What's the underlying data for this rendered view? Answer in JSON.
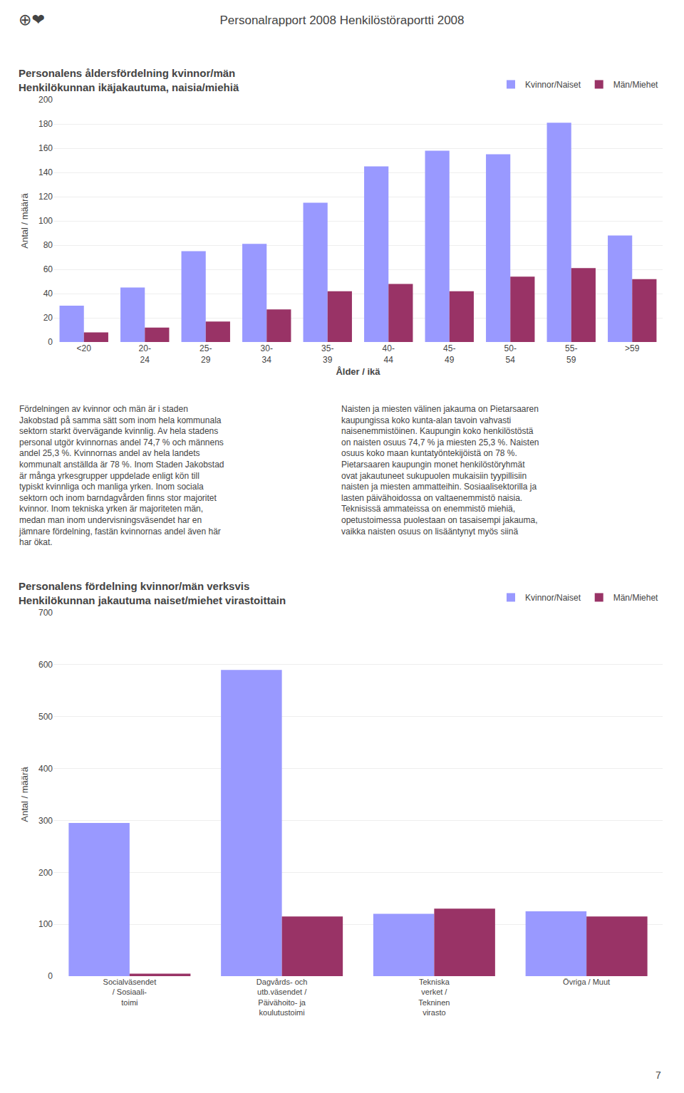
{
  "title": "Personalrapport 2008 Henkilöstöraportti 2008",
  "annotations": [
    "⊕❤",
    "Fördelningen av kvinnor och män är i staden\nJakobstad på samma sätt som inom hela kommunala\nsektorn starkt övervägande kvinnlig. Av hela stadens\npersonal utgör kvinnornas andel 74,7 % och männens\nandel 25,3 %. Kvinnornas andel av hela landets\nkommunalt anställda är 78 %. Inom Staden Jakobstad\när många yrkesgrupper uppdelade enligt kön till\ntypiskt kvinnliga och manliga yrken. Inom sociala\nsektorn och inom barndagvården finns stor majoritet\nkvinnor. Inom tekniska yrken är majoriteten män,\nmedan man inom undervisningsväsendet har en\njämnare fördelning, fastän kvinnornas andel även här\nhar ökat.",
    "Naisten ja miesten välinen jakauma on Pietarsaaren\nkaupungissa koko kunta-alan tavoin vahvasti\nnaisenemmistöinen. Kaupungin koko henkilöstöstä\non naisten osuus 74,7 % ja miesten 25,3 %. Naisten\nosuus koko maan kuntatyöntekijöistä on 78 %.\nPietarsaaren kaupungin monet henkilöstöryhmät\novat jakautuneet sukupuolen mukaisiin tyypillisiin\nnaisten ja miesten ammatteihin. Sosiaalisektorilla ja\nlasten päivähoidossa on valtaenemmistö naisia.\nTeknisissä ammateissa on enemmistö miehiä,\nopetustoimessa puolestaan on tasaisempi jakauma,\nvaikka naisten osuus on lisääntynyt myös siinä",
    "7"
  ],
  "chart_data": [
    {
      "type": "bar",
      "title": "Personalens åldersfördelning kvinnor/män\nHenkilökunnan ikäjakautuma, naisia/miehiä",
      "xlabel": "Ålder / ikä",
      "ylabel": "Antal / määrä",
      "categories": [
        "<20",
        "20-\n24",
        "25-\n29",
        "30-\n34",
        "35-\n39",
        "40-\n44",
        "45-\n49",
        "50-\n54",
        "55-\n59",
        ">59"
      ],
      "series": [
        {
          "name": "Kvinnor/Naiset",
          "color": "#9999FF",
          "values": [
            30,
            45,
            75,
            81,
            115,
            145,
            158,
            155,
            181,
            88
          ]
        },
        {
          "name": "Män/Miehet",
          "color": "#993366",
          "values": [
            8,
            12,
            17,
            27,
            42,
            48,
            42,
            54,
            61,
            52
          ]
        }
      ],
      "ylim": [
        0,
        200
      ],
      "yticks": [
        0,
        20,
        40,
        60,
        80,
        100,
        120,
        140,
        160,
        180,
        200
      ],
      "grid": true,
      "legend": "upper right"
    },
    {
      "type": "bar",
      "title": "Personalens fördelning kvinnor/män verksvis\nHenkilökunnan jakautuma naiset/miehet virastoittain",
      "ylabel": "Antal / määrä",
      "categories": [
        "Socialväsendet\n/ Sosiaali-\ntoimi",
        "Dagvårds- och\nutb.väsendet /\nPäivähoito- ja\nkoulutustoimi",
        "Tekniska\nverket /\nTekninen\nvirasto",
        "Övriga / Muut"
      ],
      "series": [
        {
          "name": "Kvinnor/Naiset",
          "color": "#9999FF",
          "values": [
            295,
            590,
            120,
            125
          ]
        },
        {
          "name": "Män/Miehet",
          "color": "#993366",
          "values": [
            5,
            115,
            130,
            115
          ]
        }
      ],
      "ylim": [
        0,
        700
      ],
      "yticks": [
        0,
        100,
        200,
        300,
        400,
        500,
        600,
        700
      ],
      "grid": true,
      "legend": "upper right"
    }
  ]
}
